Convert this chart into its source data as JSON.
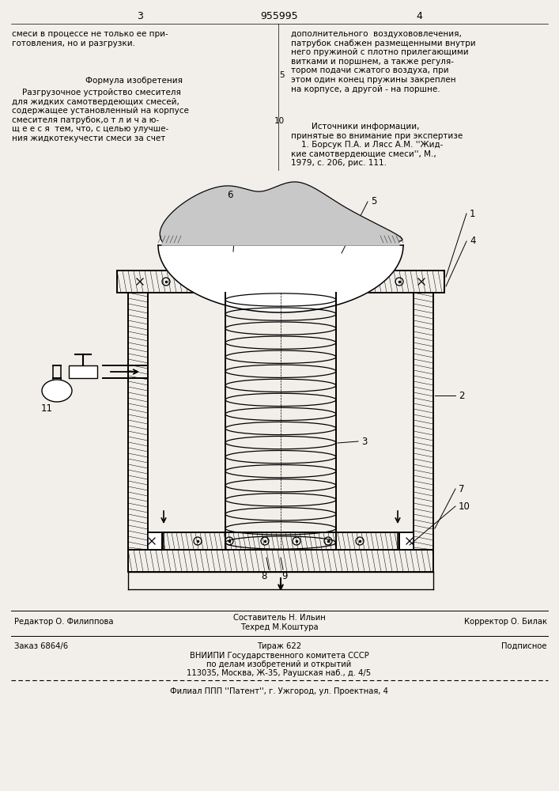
{
  "bg_color": "#f2efea",
  "patent_number": "955995",
  "page_left": "3",
  "page_right": "4",
  "text_col1_top": "смеси в процессе не только ее при-\nготовления, но и разгрузки.",
  "text_col1_formula_title": "Формула изобретения",
  "text_col1_formula": "    Разгрузочное устройство смесителя\nдля жидких самотвердеющих смесей,\nсодержащее установленный на корпусе\nсмесителя патрубок,о т л и ч а ю-\nщ е е с я  тем, что, с целью улучше-\nния жидкотекучести смеси за счет",
  "text_col2_top": "дополнительного  воздухововлечения,\nпатрубок снабжен размещенными внутри\nнего пружиной с плотно прилегающими\nвитками и поршнем, а также регуля-\nтором подачи сжатого воздуха, при\nэтом один конец пружины закреплен\nна корпусе, а другой - на поршне.",
  "text_col2_sources": "        Источники информации,\nпринятые во внимание при экспертизе\n    1. Борсук П.А. и Лясс А.М. ''Жид-\nкие самотвердеющие смеси'', М.,\n1979, с. 206, рис. 111.",
  "bottom_editor": "Редактор О. Филиппова",
  "bottom_author": "Составитель Н. Ильин",
  "bottom_techred": "Техред М.Коштура",
  "bottom_corrector": "Корректор О. Билак",
  "bottom_order": "Заказ 6864/6",
  "bottom_tirazh": "Тираж 622",
  "bottom_podpisnoe": "Подписное",
  "bottom_vniip": "ВНИИПИ Государственного комитета СССР",
  "bottom_po_delam": "по делам изобретений и открытий",
  "bottom_address": "113035, Москва, Ж-35, Раушская наб., д. 4/5",
  "bottom_filial": "Филиал ППП ''Патент'', г. Ужгород, ул. Проектная, 4"
}
